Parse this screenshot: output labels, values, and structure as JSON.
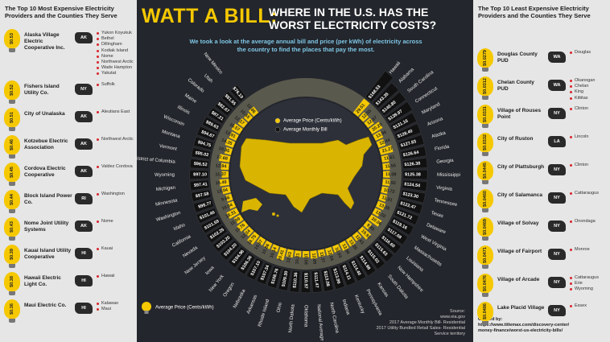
{
  "header": {
    "title_main": "WATT A BILL:",
    "title_line1": "WHERE IN THE U.S. HAS THE",
    "title_line2": "WORST ELECTRICITY COSTS?",
    "subtitle": "We took a look at the average annual bill and price (per kWh) of electricity across the country to find the places that pay the most."
  },
  "left_panel": {
    "title": "The Top 10 Most Expensive Electricity Providers and the Counties They Serve",
    "providers": [
      {
        "name": "Alaska Village Electric Cooperative Inc.",
        "price": "$0.53",
        "state": "AK",
        "counties": [
          "Yukon Koyukuk",
          "Bethel",
          "Dillingham",
          "Kodiak Island",
          "Nome",
          "Northwest Arctic",
          "Wade Hampton",
          "Yakutat"
        ]
      },
      {
        "name": "Fishers Island Utility Co.",
        "price": "$0.52",
        "state": "NY",
        "counties": [
          "Suffolk"
        ]
      },
      {
        "name": "City of Unalaska",
        "price": "$0.51",
        "state": "AK",
        "counties": [
          "Aleutians East"
        ]
      },
      {
        "name": "Kotzebue Electric Association",
        "price": "$0.46",
        "state": "AK",
        "counties": [
          "Northwest Arctic"
        ]
      },
      {
        "name": "Cordova Electric Cooperative",
        "price": "$0.45",
        "state": "AK",
        "counties": [
          "Valdez Cordova"
        ]
      },
      {
        "name": "Block Island Power Co.",
        "price": "$0.44",
        "state": "RI",
        "counties": [
          "Washington"
        ]
      },
      {
        "name": "Nome Joint Utility Systems",
        "price": "$0.43",
        "state": "AK",
        "counties": [
          "Nome"
        ]
      },
      {
        "name": "Kauai Island Utility Cooperative",
        "price": "$0.39",
        "state": "HI",
        "counties": [
          "Kauai"
        ]
      },
      {
        "name": "Hawaii Electric Light Co.",
        "price": "$0.38",
        "state": "HI",
        "counties": [
          "Hawaii"
        ]
      },
      {
        "name": "Maui Electric Co.",
        "price": "$0.36",
        "state": "HI",
        "counties": [
          "Kalawao",
          "Maui"
        ]
      }
    ]
  },
  "right_panel": {
    "title": "The Top 10 Least Expensive Electricity Providers and the Counties They Serve",
    "providers": [
      {
        "name": "Douglas County PUD",
        "price": "$0.0279",
        "state": "WA",
        "counties": [
          "Douglas"
        ]
      },
      {
        "name": "Chelan County PUD",
        "price": "$0.0312",
        "state": "WA",
        "counties": [
          "Okanogan",
          "Chelan",
          "King",
          "Kittitas"
        ]
      },
      {
        "name": "Village of Rouses Point",
        "price": "$0.0331",
        "state": "NY",
        "counties": [
          "Clinton"
        ]
      },
      {
        "name": "City of Ruston",
        "price": "$0.0332",
        "state": "LA",
        "counties": [
          "Lincoln"
        ]
      },
      {
        "name": "City of Plattsburgh",
        "price": "$0.0445",
        "state": "NY",
        "counties": [
          "Clinton"
        ]
      },
      {
        "name": "City of Salamanca",
        "price": "$0.0460",
        "state": "NY",
        "counties": [
          "Cattaraugus"
        ]
      },
      {
        "name": "Village of Solvay",
        "price": "$0.0469",
        "state": "NY",
        "counties": [
          "Onondaga"
        ]
      },
      {
        "name": "Village of Fairport",
        "price": "$0.0471",
        "state": "NY",
        "counties": [
          "Monroe"
        ]
      },
      {
        "name": "Village of Arcade",
        "price": "$0.0476",
        "state": "NY",
        "counties": [
          "Cattaraugus",
          "Erie",
          "Wyoming"
        ]
      },
      {
        "name": "Lake Placid Village",
        "price": "$0.0486",
        "state": "NY",
        "counties": [
          "Essex"
        ]
      }
    ],
    "credit": [
      "Created by:",
      "https://www.titlemax.com/discovery-center/",
      "money-finance/worst-us-electricity-bills/"
    ]
  },
  "chart_data": {
    "type": "radial_bar",
    "categories": [
      "New Mexico",
      "Utah",
      "Colorado",
      "Maine",
      "Illinois",
      "Wisconsin",
      "Montana",
      "Vermont",
      "District of Columbia",
      "Wyoming",
      "Michigan",
      "Minnesota",
      "Washington",
      "Idaho",
      "California",
      "Nevada",
      "New Jersey",
      "Iowa",
      "New York",
      "Oregon",
      "Nebraska",
      "Arkansas",
      "Rhode Island",
      "Ohio",
      "North Dakota",
      "Oklahoma",
      "National Average",
      "North Carolina",
      "Indiana",
      "Kentucky",
      "Pennsylvania",
      "Kansas",
      "South Dakota",
      "New Hampshire",
      "Louisiana",
      "Massachusetts",
      "West Virginia",
      "Delaware",
      "Texas",
      "Tennessee",
      "Virginia",
      "Mississippi",
      "Georgia",
      "Florida",
      "Alaska",
      "Arizona",
      "Maryland",
      "Connecticut",
      "South Carolina",
      "Alabama",
      "Hawaii"
    ],
    "series": [
      {
        "name": "Average Price (Cents/kWh)",
        "color": "#f5c800",
        "values": [
          12.86,
          10.65,
          12.17,
          15.57,
          12.91,
          14.35,
          10.95,
          17.68,
          12.94,
          11.37,
          15.49,
          13.04,
          9.66,
          10.04,
          18.31,
          11.99,
          15.76,
          12.34,
          18.75,
          10.87,
          10.86,
          10.14,
          20.41,
          12.63,
          10.21,
          10.58,
          12.89,
          11.37,
          12.04,
          10.93,
          13.96,
          13.25,
          11.61,
          19.92,
          9.85,
          20.06,
          11.02,
          13.35,
          11.31,
          10.72,
          11.92,
          11.08,
          11.55,
          11.61,
          21.27,
          12.44,
          13.96,
          20.29,
          12.67,
          12.55,
          29.51
        ]
      },
      {
        "name": "Average Monthly Bill",
        "color": "#111111",
        "values": [
          76.1,
          81.65,
          82.67,
          87.21,
          89.63,
          94.67,
          94.75,
          95.02,
          96.52,
          97.1,
          97.41,
          97.58,
          98.77,
          101.46,
          101.59,
          102.25,
          103.2,
          104.2,
          104.96,
          106.36,
          107.1,
          107.34,
          108.76,
          109.3,
          110.36,
          110.97,
          111.47,
          113.08,
          113.96,
          114.11,
          114.4,
          114.98,
          115.02,
          115.63,
          116.6,
          117.08,
          119.16,
          121.72,
          122.47,
          123.3,
          124.54,
          125.38,
          126.38,
          126.64,
          127.83,
          128.4,
          131.16,
          139.97,
          140.8,
          143.35,
          168.53
        ],
        "value_labels": [
          "$76.10",
          "$81.65",
          "$82.67",
          "$87.21",
          "$89.63",
          "$94.67",
          "$94.75",
          "$95.02",
          "$96.52",
          "$97.10",
          "$97.41",
          "$97.58",
          "$98.77",
          "$101.46",
          "$101.59",
          "$102.25",
          "$103.20",
          "$104.20",
          "$104.96",
          "$106.36",
          "$107.10",
          "$107.34",
          "$108.76",
          "$109.30",
          "$110.36",
          "$110.97",
          "$111.47",
          "$113.08",
          "$113.96",
          "$114.11",
          "$114.40",
          "$114.98",
          "$115.02",
          "$115.63",
          "$116.60",
          "$117.08",
          "$119.16",
          "$121.72",
          "$122.47",
          "$123.30",
          "$124.54",
          "$125.38",
          "$126.38",
          "$126.64",
          "$127.83",
          "$128.40",
          "$131.16",
          "$139.97",
          "$140.80",
          "$143.35",
          "$168.53"
        ]
      }
    ]
  },
  "footer": {
    "source": [
      "Source:",
      "www.eia.gov",
      "2017 Average Monthly Bill- Residential",
      "2017 Utility Bundled Retail Sales- Residential",
      "Service territory"
    ]
  }
}
